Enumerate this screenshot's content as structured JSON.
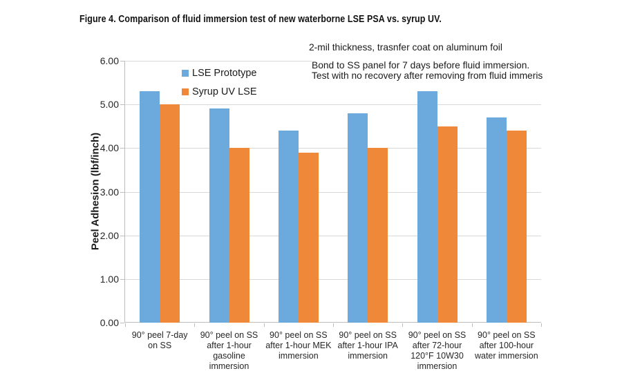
{
  "figure": {
    "title": "Figure 4. Comparison of fluid immersion test of new waterborne LSE PSA vs. syrup UV.",
    "annotation_line1": "2-mil thickness, trasnfer coat on aluminum foil",
    "annotation_line2": "Bond to SS panel for 7 days before fluid immersion.",
    "annotation_line3": "Test with no recovery after removing from fluid immeris"
  },
  "chart_data": {
    "type": "bar",
    "title": "Figure 4. Comparison of fluid immersion test of new waterborne LSE PSA vs. syrup UV.",
    "ylabel": "Peel Adhesion (lbf/inch)",
    "xlabel": "",
    "ylim": [
      0,
      6
    ],
    "ytick_step": 1,
    "ytick_labels": [
      "0.00",
      "1.00",
      "2.00",
      "3.00",
      "4.00",
      "5.00",
      "6.00"
    ],
    "grid": true,
    "legend_position": "inside-top-left",
    "categories": [
      "90° peel 7-day\non SS",
      "90° peel on SS\nafter 1-hour\ngasoline\nimmersion",
      "90° peel on SS\nafter 1-hour MEK\nimmersion",
      "90° peel on SS\nafter 1-hour IPA\nimmersion",
      "90° peel on SS\nafter 72-hour\n120°F 10W30\nimmersion",
      "90° peel on SS\nafter 100-hour\nwater immersion"
    ],
    "series": [
      {
        "name": "LSE Prototype",
        "color": "#6CAADD",
        "values": [
          5.3,
          4.9,
          4.4,
          4.8,
          5.3,
          4.7
        ]
      },
      {
        "name": "Syrup UV LSE",
        "color": "#EF8839",
        "values": [
          5.0,
          4.0,
          3.9,
          4.0,
          4.5,
          4.4
        ]
      }
    ]
  }
}
